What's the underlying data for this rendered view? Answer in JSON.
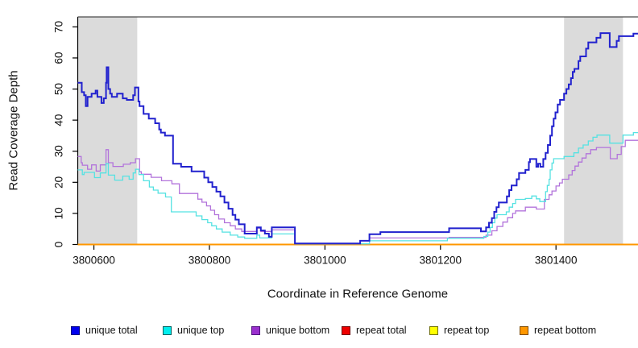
{
  "figure": {
    "ylabel": "Read Coverage Depth",
    "xlabel": "Coordinate in Reference Genome"
  },
  "legend": {
    "items": [
      {
        "label": "unique total",
        "fill": "#0000EE",
        "border": "#000080"
      },
      {
        "label": "unique top",
        "fill": "#00EEEE",
        "border": "#005E5E"
      },
      {
        "label": "unique bottom",
        "fill": "#9A30CE",
        "border": "#50127E"
      },
      {
        "label": "repeat total",
        "fill": "#EE0000",
        "border": "#6E0000"
      },
      {
        "label": "repeat top",
        "fill": "#FFFF00",
        "border": "#6E6E00"
      },
      {
        "label": "repeat bottom",
        "fill": "#FF9700",
        "border": "#7E4A00"
      }
    ]
  },
  "chart_data": {
    "type": "line",
    "step": true,
    "title": "",
    "xlabel": "Coordinate in Reference Genome",
    "ylabel": "Read Coverage Depth",
    "xlim": [
      3800572,
      3801542
    ],
    "ylim": [
      0,
      73.2
    ],
    "x_ticks": [
      3800600,
      3800800,
      3801000,
      3801200,
      3801400
    ],
    "y_ticks": [
      0,
      10,
      20,
      30,
      40,
      50,
      60,
      70
    ],
    "grid": false,
    "legend_position": "bottom",
    "shaded_regions": [
      {
        "x0": 3800572,
        "x1": 3800675,
        "color": "#DBDBDB"
      },
      {
        "x0": 3801414,
        "x1": 3801516,
        "color": "#DBDBDB"
      }
    ],
    "series": [
      {
        "name": "repeat total",
        "color": "#EE0000",
        "width": 1.4,
        "points": [
          [
            3800572,
            0
          ],
          [
            3801542,
            0
          ]
        ]
      },
      {
        "name": "repeat top",
        "color": "#FFEE00",
        "width": 1.4,
        "points": [
          [
            3800572,
            0
          ],
          [
            3801542,
            0
          ]
        ]
      },
      {
        "name": "repeat bottom",
        "color": "#FF9700",
        "width": 2,
        "points": [
          [
            3800572,
            0
          ],
          [
            3801542,
            0
          ]
        ]
      },
      {
        "name": "unique bottom",
        "color": "#B273DB",
        "width": 1.3,
        "points": [
          [
            3800572,
            28.3
          ],
          [
            3800578,
            26.3
          ],
          [
            3800580,
            25.5
          ],
          [
            3800589,
            24.2
          ],
          [
            3800596,
            25.6
          ],
          [
            3800604,
            23.6
          ],
          [
            3800611,
            25.6
          ],
          [
            3800621,
            30.5
          ],
          [
            3800625,
            26.3
          ],
          [
            3800633,
            25.1
          ],
          [
            3800651,
            25.8
          ],
          [
            3800663,
            26.3
          ],
          [
            3800672,
            27.6
          ],
          [
            3800679,
            23.4
          ],
          [
            3800682,
            22.6
          ],
          [
            3800699,
            21.6
          ],
          [
            3800717,
            20.5
          ],
          [
            3800735,
            19.5
          ],
          [
            3800748,
            16.4
          ],
          [
            3800780,
            14.6
          ],
          [
            3800787,
            13.6
          ],
          [
            3800795,
            12.4
          ],
          [
            3800802,
            11
          ],
          [
            3800809,
            9.6
          ],
          [
            3800816,
            8.2
          ],
          [
            3800826,
            7
          ],
          [
            3800836,
            6
          ],
          [
            3800845,
            5
          ],
          [
            3800856,
            4.2
          ],
          [
            3800882,
            5.2
          ],
          [
            3800889,
            4.2
          ],
          [
            3800908,
            4.7
          ],
          [
            3800948,
            0.2
          ],
          [
            3801077,
            2.1
          ],
          [
            3801215,
            2.3
          ],
          [
            3801279,
            3
          ],
          [
            3801289,
            4.4
          ],
          [
            3801298,
            5.8
          ],
          [
            3801308,
            7.2
          ],
          [
            3801316,
            8.6
          ],
          [
            3801325,
            10
          ],
          [
            3801330,
            10.8
          ],
          [
            3801347,
            12
          ],
          [
            3801366,
            11.4
          ],
          [
            3801380,
            14.5
          ],
          [
            3801388,
            16
          ],
          [
            3801393,
            17.2
          ],
          [
            3801400,
            18.8
          ],
          [
            3801406,
            19.8
          ],
          [
            3801411,
            21
          ],
          [
            3801422,
            22.4
          ],
          [
            3801428,
            23.8
          ],
          [
            3801433,
            25.2
          ],
          [
            3801439,
            26.5
          ],
          [
            3801445,
            27.8
          ],
          [
            3801452,
            29.2
          ],
          [
            3801460,
            30.5
          ],
          [
            3801470,
            31.2
          ],
          [
            3801494,
            27.6
          ],
          [
            3801506,
            29
          ],
          [
            3801513,
            31.5
          ],
          [
            3801520,
            33.5
          ]
        ]
      },
      {
        "name": "unique top",
        "color": "#55E2E2",
        "width": 1.3,
        "points": [
          [
            3800572,
            24
          ],
          [
            3800580,
            22.5
          ],
          [
            3800583,
            23.2
          ],
          [
            3800601,
            21.5
          ],
          [
            3800611,
            23
          ],
          [
            3800621,
            26
          ],
          [
            3800625,
            22.3
          ],
          [
            3800636,
            20.7
          ],
          [
            3800650,
            22
          ],
          [
            3800661,
            21
          ],
          [
            3800668,
            23
          ],
          [
            3800672,
            24.2
          ],
          [
            3800678,
            22.5
          ],
          [
            3800686,
            20.5
          ],
          [
            3800696,
            18.5
          ],
          [
            3800703,
            17.5
          ],
          [
            3800711,
            16.5
          ],
          [
            3800724,
            15.3
          ],
          [
            3800734,
            10.5
          ],
          [
            3800777,
            9.2
          ],
          [
            3800787,
            8
          ],
          [
            3800797,
            7
          ],
          [
            3800804,
            6
          ],
          [
            3800812,
            5
          ],
          [
            3800822,
            4
          ],
          [
            3800836,
            3
          ],
          [
            3800849,
            2.4
          ],
          [
            3800861,
            2
          ],
          [
            3800882,
            3
          ],
          [
            3800887,
            2.1
          ],
          [
            3800908,
            3.4
          ],
          [
            3800948,
            0.2
          ],
          [
            3801077,
            1.2
          ],
          [
            3801212,
            2
          ],
          [
            3801275,
            2.6
          ],
          [
            3801282,
            4
          ],
          [
            3801286,
            5.5
          ],
          [
            3801290,
            7
          ],
          [
            3801294,
            8.5
          ],
          [
            3801298,
            9.6
          ],
          [
            3801314,
            10.5
          ],
          [
            3801319,
            12
          ],
          [
            3801325,
            13.2
          ],
          [
            3801330,
            14.5
          ],
          [
            3801347,
            14.8
          ],
          [
            3801358,
            15.6
          ],
          [
            3801366,
            14.7
          ],
          [
            3801372,
            13.8
          ],
          [
            3801382,
            17
          ],
          [
            3801385,
            19
          ],
          [
            3801388,
            21
          ],
          [
            3801390,
            24
          ],
          [
            3801393,
            26.2
          ],
          [
            3801396,
            27.6
          ],
          [
            3801414,
            28.3
          ],
          [
            3801431,
            29.5
          ],
          [
            3801439,
            31
          ],
          [
            3801447,
            32
          ],
          [
            3801456,
            33.3
          ],
          [
            3801464,
            34.5
          ],
          [
            3801471,
            35.2
          ],
          [
            3801493,
            32.6
          ],
          [
            3801516,
            35.2
          ],
          [
            3801534,
            36
          ]
        ]
      },
      {
        "name": "unique total",
        "color": "#2121CE",
        "width": 2,
        "points": [
          [
            3800572,
            52
          ],
          [
            3800579,
            49
          ],
          [
            3800583,
            48
          ],
          [
            3800586,
            44.5
          ],
          [
            3800589,
            47.5
          ],
          [
            3800596,
            48.5
          ],
          [
            3800603,
            49.5
          ],
          [
            3800606,
            47.5
          ],
          [
            3800613,
            45.5
          ],
          [
            3800617,
            47
          ],
          [
            3800621,
            52
          ],
          [
            3800622,
            57
          ],
          [
            3800625,
            50
          ],
          [
            3800628,
            48.5
          ],
          [
            3800631,
            47.5
          ],
          [
            3800640,
            48.5
          ],
          [
            3800650,
            47
          ],
          [
            3800657,
            46.5
          ],
          [
            3800668,
            48
          ],
          [
            3800671,
            50.5
          ],
          [
            3800677,
            46
          ],
          [
            3800679,
            44.5
          ],
          [
            3800686,
            42
          ],
          [
            3800695,
            40.5
          ],
          [
            3800706,
            39
          ],
          [
            3800713,
            37
          ],
          [
            3800716,
            36
          ],
          [
            3800723,
            35
          ],
          [
            3800737,
            26
          ],
          [
            3800751,
            25
          ],
          [
            3800769,
            23.5
          ],
          [
            3800791,
            21.5
          ],
          [
            3800798,
            20
          ],
          [
            3800805,
            18.5
          ],
          [
            3800812,
            17
          ],
          [
            3800819,
            15.5
          ],
          [
            3800826,
            13.5
          ],
          [
            3800833,
            11.5
          ],
          [
            3800840,
            9.5
          ],
          [
            3800845,
            8
          ],
          [
            3800851,
            6.5
          ],
          [
            3800861,
            3.5
          ],
          [
            3800882,
            5.5
          ],
          [
            3800889,
            4.5
          ],
          [
            3800896,
            3.5
          ],
          [
            3800903,
            2.5
          ],
          [
            3800908,
            5.5
          ],
          [
            3800948,
            0.3
          ],
          [
            3801061,
            1.2
          ],
          [
            3801077,
            3.3
          ],
          [
            3801096,
            4
          ],
          [
            3801215,
            5.2
          ],
          [
            3801270,
            4.2
          ],
          [
            3801279,
            5.5
          ],
          [
            3801284,
            7
          ],
          [
            3801289,
            8.5
          ],
          [
            3801293,
            10.5
          ],
          [
            3801297,
            12
          ],
          [
            3801301,
            13.5
          ],
          [
            3801315,
            15.5
          ],
          [
            3801319,
            17.5
          ],
          [
            3801323,
            19
          ],
          [
            3801332,
            21
          ],
          [
            3801336,
            23
          ],
          [
            3801347,
            24
          ],
          [
            3801353,
            26.5
          ],
          [
            3801355,
            27.5
          ],
          [
            3801366,
            25
          ],
          [
            3801369,
            26
          ],
          [
            3801373,
            25
          ],
          [
            3801378,
            27.5
          ],
          [
            3801382,
            29.5
          ],
          [
            3801386,
            32
          ],
          [
            3801390,
            35
          ],
          [
            3801393,
            38
          ],
          [
            3801396,
            40.5
          ],
          [
            3801399,
            42.5
          ],
          [
            3801403,
            45
          ],
          [
            3801407,
            46.5
          ],
          [
            3801414,
            48.5
          ],
          [
            3801418,
            50
          ],
          [
            3801422,
            51.5
          ],
          [
            3801426,
            53.5
          ],
          [
            3801429,
            55.5
          ],
          [
            3801432,
            56.5
          ],
          [
            3801439,
            59
          ],
          [
            3801442,
            60.5
          ],
          [
            3801452,
            63
          ],
          [
            3801456,
            65
          ],
          [
            3801470,
            66.5
          ],
          [
            3801477,
            68
          ],
          [
            3801493,
            63.5
          ],
          [
            3801505,
            65.5
          ],
          [
            3801509,
            67
          ],
          [
            3801534,
            67.8
          ]
        ]
      }
    ]
  }
}
